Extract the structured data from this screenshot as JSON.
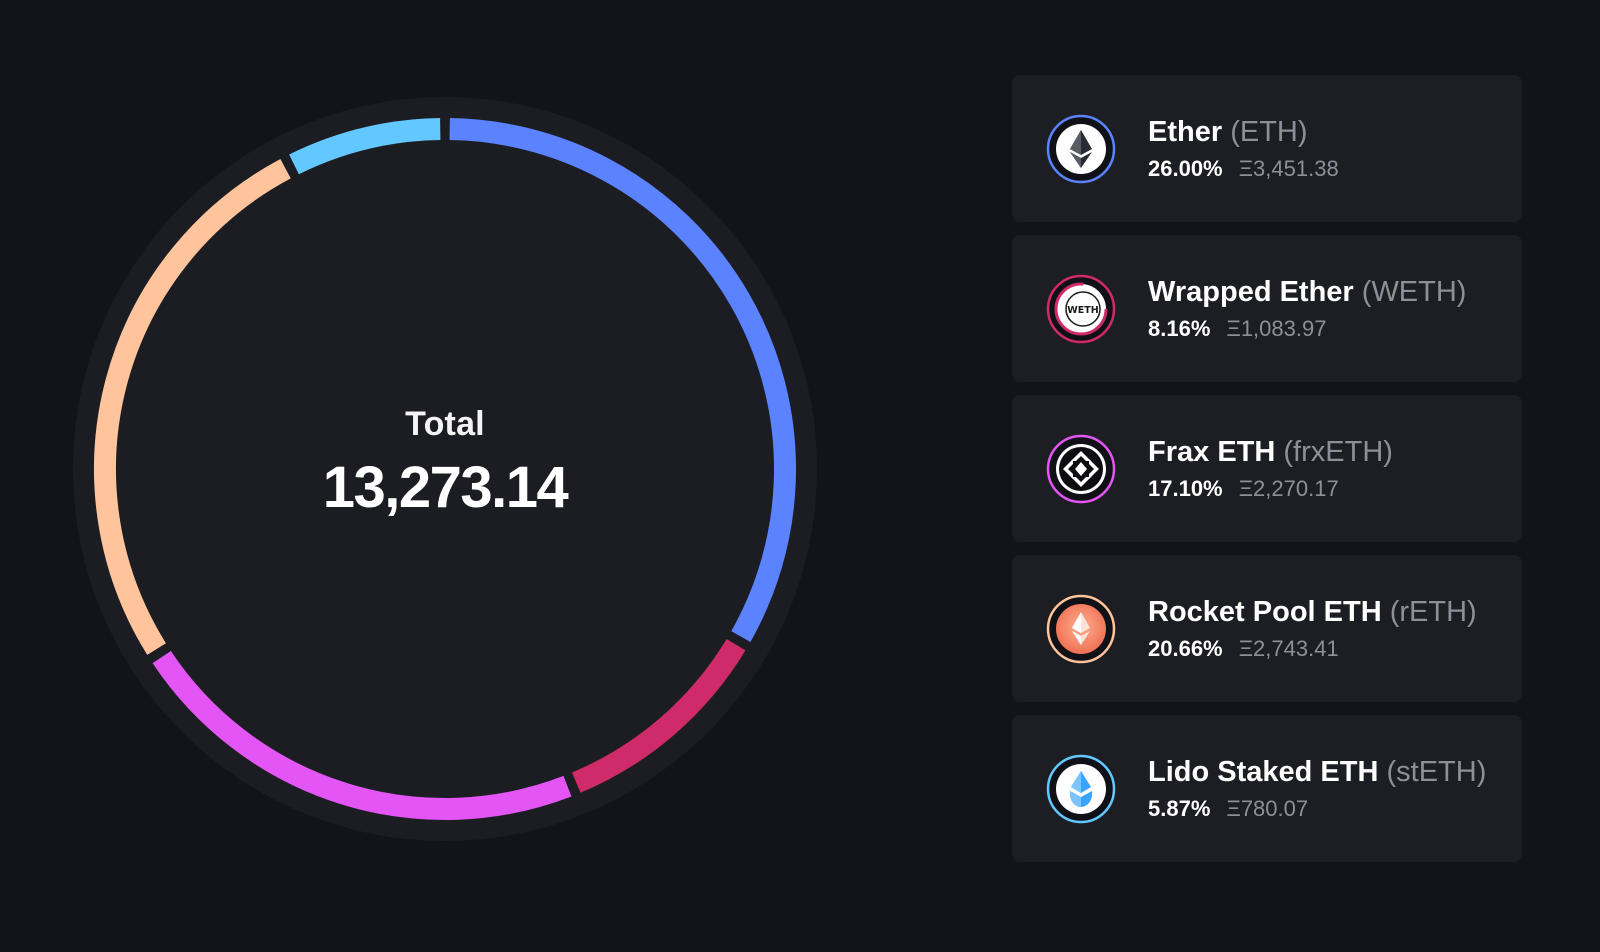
{
  "donut": {
    "label": "Total",
    "total": "13,273.14"
  },
  "assets": [
    {
      "name": "Ether",
      "symbol": "(ETH)",
      "percent": "26.00%",
      "amount": "Ξ3,451.38",
      "share": 0.26,
      "color": "#5b82ff",
      "icon": "ether-icon"
    },
    {
      "name": "Wrapped Ether",
      "symbol": "(WETH)",
      "percent": "8.16%",
      "amount": "Ξ1,083.97",
      "share": 0.0816,
      "color": "#cf2a6a",
      "icon": "weth-icon",
      "icon_text": "WETH"
    },
    {
      "name": "Frax ETH",
      "symbol": "(frxETH)",
      "percent": "17.10%",
      "amount": "Ξ2,270.17",
      "share": 0.171,
      "color": "#e356f5",
      "icon": "frax-eth-icon"
    },
    {
      "name": "Rocket Pool ETH",
      "symbol": "(rETH)",
      "percent": "20.66%",
      "amount": "Ξ2,743.41",
      "share": 0.2066,
      "color": "#ffc49c",
      "icon": "rocket-pool-eth-icon"
    },
    {
      "name": "Lido Staked ETH",
      "symbol": "(stETH)",
      "percent": "5.87%",
      "amount": "Ξ780.07",
      "share": 0.0587,
      "color": "#62c8ff",
      "icon": "lido-steth-icon"
    }
  ],
  "colors": {
    "background": "#131419",
    "card": "#1d1e24",
    "donut_track": "#1c1d23",
    "muted_text": "#8e8f98"
  }
}
